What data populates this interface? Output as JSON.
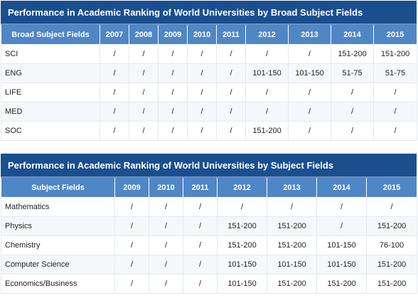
{
  "table1": {
    "title": "Performance in Academic Ranking of World Universities by Broad Subject Fields",
    "headers": [
      "Broad Subject Fields",
      "2007",
      "2008",
      "2009",
      "2010",
      "2011",
      "2012",
      "2013",
      "2014",
      "2015"
    ],
    "rows": [
      [
        "SCI",
        "/",
        "/",
        "/",
        "/",
        "/",
        "/",
        "/",
        "151-200",
        "151-200"
      ],
      [
        "ENG",
        "/",
        "/",
        "/",
        "/",
        "/",
        "101-150",
        "101-150",
        "51-75",
        "51-75"
      ],
      [
        "LIFE",
        "/",
        "/",
        "/",
        "/",
        "/",
        "/",
        "/",
        "/",
        "/"
      ],
      [
        "MED",
        "/",
        "/",
        "/",
        "/",
        "/",
        "/",
        "/",
        "/",
        "/"
      ],
      [
        "SOC",
        "/",
        "/",
        "/",
        "/",
        "/",
        "151-200",
        "/",
        "/",
        "/"
      ]
    ]
  },
  "table2": {
    "title": "Performance in Academic Ranking of World Universities by Subject Fields",
    "headers": [
      "Subject Fields",
      "2009",
      "2010",
      "2011",
      "2012",
      "2013",
      "2014",
      "2015"
    ],
    "rows": [
      [
        "Mathematics",
        "/",
        "/",
        "/",
        "/",
        "/",
        "/",
        "/"
      ],
      [
        "Physics",
        "/",
        "/",
        "/",
        "151-200",
        "151-200",
        "/",
        "151-200"
      ],
      [
        "Chemistry",
        "/",
        "/",
        "/",
        "151-200",
        "151-200",
        "101-150",
        "76-100"
      ],
      [
        "Computer Science",
        "/",
        "/",
        "/",
        "101-150",
        "101-150",
        "101-150",
        "151-200"
      ],
      [
        "Economics/Business",
        "/",
        "/",
        "/",
        "101-150",
        "151-200",
        "151-200",
        "151-200"
      ]
    ]
  }
}
